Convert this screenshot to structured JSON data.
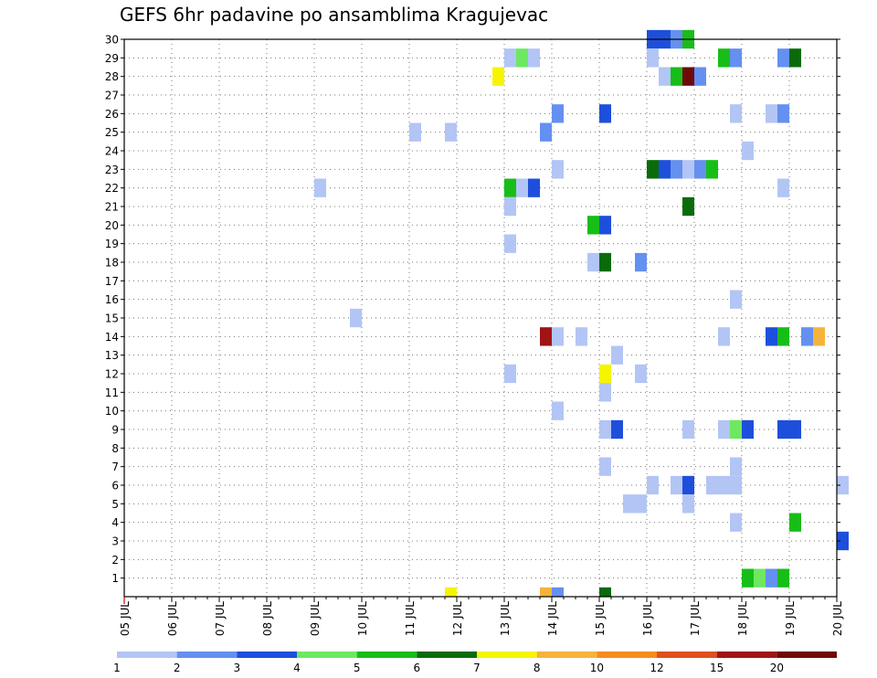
{
  "chart_data": {
    "type": "heatmap",
    "title": "GEFS 6hr padavine po ansamblima Kragujevac",
    "x_ticks": [
      "05 JUL",
      "06 JUL",
      "07 JUL",
      "08 JUL",
      "09 JUL",
      "10 JUL",
      "11 JUL",
      "12 JUL",
      "13 JUL",
      "14 JUL",
      "15 JUL",
      "16 JUL",
      "17 JUL",
      "18 JUL",
      "19 JUL",
      "20 JUL"
    ],
    "y_ticks": [
      "1",
      "2",
      "3",
      "4",
      "5",
      "6",
      "7",
      "8",
      "9",
      "10",
      "11",
      "12",
      "13",
      "14",
      "15",
      "16",
      "17",
      "18",
      "19",
      "20",
      "21",
      "22",
      "23",
      "24",
      "25",
      "26",
      "27",
      "28",
      "29",
      "30"
    ],
    "x_range_days": [
      0,
      15
    ],
    "y_range": [
      0,
      30
    ],
    "grid": true,
    "legend": {
      "labels": [
        "1",
        "2",
        "3",
        "4",
        "5",
        "6",
        "7",
        "8",
        "10",
        "12",
        "15",
        "20"
      ],
      "colors": [
        "#b3c5f5",
        "#6490f0",
        "#1e4fdc",
        "#6de860",
        "#18be18",
        "#0a6b0a",
        "#f5f500",
        "#f5b33c",
        "#f58c1e",
        "#e0501e",
        "#a01414",
        "#6e0a0a"
      ]
    },
    "cells": [
      {
        "t": "16 JUL 00Z",
        "m": 30,
        "v": 3
      },
      {
        "t": "16 JUL 06Z",
        "m": 30,
        "v": 3
      },
      {
        "t": "16 JUL 12Z",
        "m": 30,
        "v": 2
      },
      {
        "t": "16 JUL 18Z",
        "m": 30,
        "v": 5
      },
      {
        "t": "12 JUL 18Z",
        "m": 28,
        "v": 7
      },
      {
        "t": "13 JUL 00Z",
        "m": 29,
        "v": 1
      },
      {
        "t": "13 JUL 06Z",
        "m": 29,
        "v": 4
      },
      {
        "t": "13 JUL 12Z",
        "m": 29,
        "v": 1
      },
      {
        "t": "16 JUL 00Z",
        "m": 29,
        "v": 1
      },
      {
        "t": "16 JUL 06Z",
        "m": 28,
        "v": 1
      },
      {
        "t": "16 JUL 12Z",
        "m": 28,
        "v": 5
      },
      {
        "t": "16 JUL 18Z",
        "m": 28,
        "v": 20
      },
      {
        "t": "17 JUL 00Z",
        "m": 28,
        "v": 2
      },
      {
        "t": "17 JUL 12Z",
        "m": 29,
        "v": 5
      },
      {
        "t": "17 JUL 18Z",
        "m": 29,
        "v": 2
      },
      {
        "t": "18 JUL 18Z",
        "m": 29,
        "v": 2
      },
      {
        "t": "19 JUL 00Z",
        "m": 29,
        "v": 6
      },
      {
        "t": "14 JUL 00Z",
        "m": 26,
        "v": 2
      },
      {
        "t": "15 JUL 00Z",
        "m": 26,
        "v": 3
      },
      {
        "t": "17 JUL 18Z",
        "m": 26,
        "v": 1
      },
      {
        "t": "18 JUL 12Z",
        "m": 26,
        "v": 1
      },
      {
        "t": "18 JUL 18Z",
        "m": 26,
        "v": 2
      },
      {
        "t": "11 JUL 00Z",
        "m": 25,
        "v": 1
      },
      {
        "t": "11 JUL 18Z",
        "m": 25,
        "v": 1
      },
      {
        "t": "13 JUL 18Z",
        "m": 25,
        "v": 2
      },
      {
        "t": "18 JUL 00Z",
        "m": 24,
        "v": 1
      },
      {
        "t": "14 JUL 00Z",
        "m": 23,
        "v": 1
      },
      {
        "t": "16 JUL 00Z",
        "m": 23,
        "v": 6
      },
      {
        "t": "16 JUL 06Z",
        "m": 23,
        "v": 3
      },
      {
        "t": "16 JUL 12Z",
        "m": 23,
        "v": 2
      },
      {
        "t": "16 JUL 18Z",
        "m": 23,
        "v": 1
      },
      {
        "t": "17 JUL 00Z",
        "m": 23,
        "v": 2
      },
      {
        "t": "17 JUL 06Z",
        "m": 23,
        "v": 5
      },
      {
        "t": "09 JUL 00Z",
        "m": 22,
        "v": 1
      },
      {
        "t": "13 JUL 00Z",
        "m": 22,
        "v": 5
      },
      {
        "t": "13 JUL 06Z",
        "m": 22,
        "v": 1
      },
      {
        "t": "13 JUL 12Z",
        "m": 22,
        "v": 3
      },
      {
        "t": "18 JUL 18Z",
        "m": 22,
        "v": 1
      },
      {
        "t": "13 JUL 00Z",
        "m": 21,
        "v": 1
      },
      {
        "t": "16 JUL 18Z",
        "m": 21,
        "v": 6
      },
      {
        "t": "14 JUL 18Z",
        "m": 20,
        "v": 5
      },
      {
        "t": "15 JUL 00Z",
        "m": 20,
        "v": 3
      },
      {
        "t": "13 JUL 00Z",
        "m": 19,
        "v": 1
      },
      {
        "t": "14 JUL 18Z",
        "m": 18,
        "v": 1
      },
      {
        "t": "15 JUL 00Z",
        "m": 18,
        "v": 6
      },
      {
        "t": "15 JUL 18Z",
        "m": 18,
        "v": 2
      },
      {
        "t": "17 JUL 18Z",
        "m": 16,
        "v": 1
      },
      {
        "t": "09 JUL 18Z",
        "m": 15,
        "v": 1
      },
      {
        "t": "13 JUL 18Z",
        "m": 14,
        "v": 15
      },
      {
        "t": "14 JUL 00Z",
        "m": 14,
        "v": 1
      },
      {
        "t": "14 JUL 12Z",
        "m": 14,
        "v": 1
      },
      {
        "t": "17 JUL 12Z",
        "m": 14,
        "v": 1
      },
      {
        "t": "18 JUL 12Z",
        "m": 14,
        "v": 3
      },
      {
        "t": "18 JUL 18Z",
        "m": 14,
        "v": 5
      },
      {
        "t": "19 JUL 06Z",
        "m": 14,
        "v": 2
      },
      {
        "t": "19 JUL 12Z",
        "m": 14,
        "v": 8
      },
      {
        "t": "15 JUL 06Z",
        "m": 13,
        "v": 1
      },
      {
        "t": "13 JUL 00Z",
        "m": 12,
        "v": 1
      },
      {
        "t": "15 JUL 00Z",
        "m": 12,
        "v": 7
      },
      {
        "t": "15 JUL 18Z",
        "m": 12,
        "v": 1
      },
      {
        "t": "15 JUL 00Z",
        "m": 11,
        "v": 1
      },
      {
        "t": "14 JUL 00Z",
        "m": 10,
        "v": 1
      },
      {
        "t": "15 JUL 00Z",
        "m": 9,
        "v": 1
      },
      {
        "t": "15 JUL 06Z",
        "m": 9,
        "v": 3
      },
      {
        "t": "16 JUL 18Z",
        "m": 9,
        "v": 1
      },
      {
        "t": "17 JUL 12Z",
        "m": 9,
        "v": 1
      },
      {
        "t": "17 JUL 18Z",
        "m": 9,
        "v": 4
      },
      {
        "t": "18 JUL 00Z",
        "m": 9,
        "v": 3
      },
      {
        "t": "18 JUL 18Z",
        "m": 9,
        "v": 3
      },
      {
        "t": "19 JUL 00Z",
        "m": 9,
        "v": 3
      },
      {
        "t": "15 JUL 00Z",
        "m": 7,
        "v": 1
      },
      {
        "t": "17 JUL 18Z",
        "m": 7,
        "v": 1
      },
      {
        "t": "16 JUL 00Z",
        "m": 6,
        "v": 1
      },
      {
        "t": "16 JUL 12Z",
        "m": 6,
        "v": 1
      },
      {
        "t": "16 JUL 18Z",
        "m": 6,
        "v": 3
      },
      {
        "t": "17 JUL 06Z",
        "m": 6,
        "v": 1
      },
      {
        "t": "17 JUL 12Z",
        "m": 6,
        "v": 1
      },
      {
        "t": "17 JUL 18Z",
        "m": 6,
        "v": 1
      },
      {
        "t": "20 JUL 00Z",
        "m": 6,
        "v": 1
      },
      {
        "t": "15 JUL 12Z",
        "m": 5,
        "v": 1
      },
      {
        "t": "15 JUL 18Z",
        "m": 5,
        "v": 1
      },
      {
        "t": "16 JUL 18Z",
        "m": 5,
        "v": 1
      },
      {
        "t": "17 JUL 18Z",
        "m": 4,
        "v": 1
      },
      {
        "t": "19 JUL 00Z",
        "m": 4,
        "v": 5
      },
      {
        "t": "20 JUL 00Z",
        "m": 3,
        "v": 3
      },
      {
        "t": "18 JUL 00Z",
        "m": 1,
        "v": 5
      },
      {
        "t": "18 JUL 06Z",
        "m": 1,
        "v": 4
      },
      {
        "t": "18 JUL 12Z",
        "m": 1,
        "v": 2
      },
      {
        "t": "18 JUL 18Z",
        "m": 1,
        "v": 5
      },
      {
        "t": "11 JUL 18Z",
        "m": 0,
        "v": 7
      },
      {
        "t": "13 JUL 18Z",
        "m": 0,
        "v": 8
      },
      {
        "t": "14 JUL 00Z",
        "m": 0,
        "v": 2
      },
      {
        "t": "15 JUL 00Z",
        "m": 0,
        "v": 6
      }
    ]
  }
}
